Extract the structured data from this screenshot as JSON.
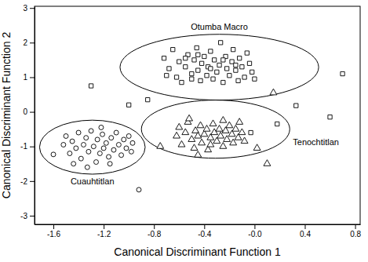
{
  "chart_data": {
    "type": "scatter",
    "x_label": "Canonical Discriminant Function 1",
    "y_label": "Canonical Discriminant Function 2",
    "xlim": [
      -1.75,
      0.84
    ],
    "ylim": [
      -3.25,
      3.05
    ],
    "xticks": [
      -1.6,
      -1.2,
      -0.8,
      -0.4,
      {
        "value": 0,
        "label": "-0.0"
      },
      0.4,
      0.8
    ],
    "yticks": [
      -3,
      -2,
      -1,
      0,
      1,
      2,
      3
    ],
    "series": [
      {
        "name": "Otumba Macro",
        "color": "#000000",
        "marker": "square",
        "ellipse": {
          "cx": -0.28,
          "cy": 1.29,
          "rx": 0.79,
          "ry": 0.95
        },
        "x": [
          -0.72,
          -0.68,
          -0.65,
          -0.62,
          -0.6,
          -0.58,
          -0.55,
          -0.53,
          -0.5,
          -0.5,
          -0.48,
          -0.46,
          -0.45,
          -0.43,
          -0.42,
          -0.4,
          -0.38,
          -0.37,
          -0.35,
          -0.33,
          -0.32,
          -0.3,
          -0.28,
          -0.27,
          -0.25,
          -0.23,
          -0.22,
          -0.2,
          -0.18,
          -0.17,
          -0.15,
          -0.13,
          -0.12,
          -0.1,
          -0.08,
          -0.06,
          -0.04,
          -0.02,
          0.0,
          -0.55,
          -0.7,
          -0.35,
          -0.25,
          -0.45,
          -0.15,
          -1.3,
          -1.0,
          -0.85,
          0.7,
          0.33,
          0.6,
          0.18,
          -0.03
        ],
        "values": [
          1.55,
          1.25,
          1.8,
          1.0,
          1.45,
          0.85,
          1.3,
          1.65,
          1.1,
          0.95,
          1.5,
          1.85,
          1.2,
          0.9,
          1.4,
          1.6,
          1.05,
          1.3,
          1.75,
          0.95,
          1.5,
          1.15,
          1.35,
          2.0,
          0.85,
          1.6,
          1.25,
          1.05,
          1.45,
          1.8,
          1.2,
          0.9,
          1.55,
          1.3,
          1.0,
          1.7,
          1.4,
          1.15,
          0.95,
          1.55,
          1.05,
          1.25,
          1.5,
          1.65,
          1.35,
          0.75,
          0.2,
          0.35,
          1.1,
          0.18,
          -0.15,
          -0.35,
          -0.6
        ]
      },
      {
        "name": "Tenochtitlan",
        "color": "#000000",
        "marker": "triangle",
        "ellipse": {
          "cx": -0.31,
          "cy": -0.5,
          "rx": 0.59,
          "ry": 0.84
        },
        "x": [
          -0.62,
          -0.6,
          -0.58,
          -0.55,
          -0.53,
          -0.5,
          -0.48,
          -0.47,
          -0.45,
          -0.43,
          -0.42,
          -0.4,
          -0.38,
          -0.37,
          -0.35,
          -0.33,
          -0.32,
          -0.3,
          -0.28,
          -0.27,
          -0.25,
          -0.23,
          -0.22,
          -0.2,
          -0.18,
          -0.17,
          -0.15,
          -0.13,
          -0.12,
          -0.1,
          -0.08,
          -0.52,
          -0.35,
          -0.25,
          -0.45,
          0.15,
          0.02,
          0.1,
          -0.75
        ],
        "values": [
          -0.7,
          -0.45,
          -0.95,
          -0.6,
          -0.3,
          -0.8,
          -1.05,
          -0.55,
          -0.7,
          -0.4,
          -0.9,
          -0.65,
          -0.5,
          -1.1,
          -0.75,
          -0.35,
          -0.6,
          -0.85,
          -0.5,
          -0.7,
          -1.0,
          -0.55,
          -0.8,
          -0.4,
          -0.65,
          -0.9,
          -0.5,
          -0.75,
          -0.3,
          -0.6,
          -0.85,
          -0.2,
          -0.95,
          -0.25,
          -1.25,
          0.55,
          -1.05,
          -1.5,
          -1.0
        ]
      },
      {
        "name": "Cuauhtitlan",
        "color": "#000000",
        "marker": "circle",
        "ellipse": {
          "cx": -1.29,
          "cy": -1.02,
          "rx": 0.42,
          "ry": 0.78
        },
        "x": [
          -1.52,
          -1.5,
          -1.47,
          -1.45,
          -1.42,
          -1.4,
          -1.38,
          -1.36,
          -1.34,
          -1.32,
          -1.3,
          -1.28,
          -1.26,
          -1.25,
          -1.23,
          -1.21,
          -1.2,
          -1.18,
          -1.16,
          -1.14,
          -1.12,
          -1.1,
          -1.08,
          -1.06,
          -1.04,
          -1.02,
          -1.0,
          -0.98,
          -0.97,
          -1.44,
          -1.33,
          -1.15,
          -1.22,
          -1.6,
          -0.92
        ],
        "values": [
          -0.95,
          -0.7,
          -1.2,
          -0.85,
          -1.05,
          -0.6,
          -1.35,
          -0.95,
          -0.75,
          -1.15,
          -0.55,
          -1.0,
          -1.45,
          -0.8,
          -1.2,
          -0.65,
          -1.05,
          -0.9,
          -1.3,
          -0.75,
          -1.1,
          -0.6,
          -0.95,
          -1.25,
          -0.8,
          -1.05,
          -0.7,
          -1.15,
          -0.9,
          -1.5,
          -1.6,
          -1.5,
          -0.45,
          -1.23,
          -2.25
        ]
      }
    ]
  }
}
